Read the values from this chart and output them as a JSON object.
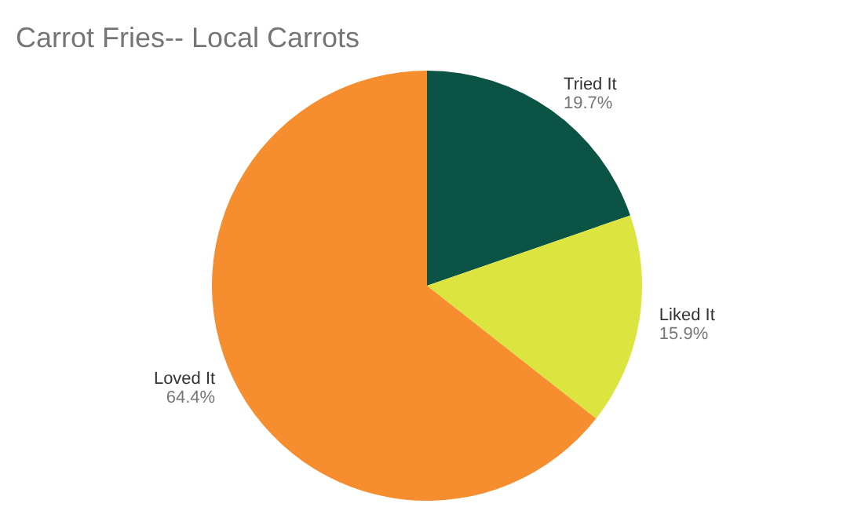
{
  "chart_data": {
    "type": "pie",
    "title": "Carrot Fries-- Local Carrots",
    "categories": [
      "Tried It",
      "Liked It",
      "Loved It"
    ],
    "values": [
      19.7,
      15.9,
      64.4
    ],
    "colors": [
      "#0b5345",
      "#dce43f",
      "#f68d2e"
    ],
    "value_labels": [
      "19.7%",
      "15.9%",
      "64.4%"
    ]
  }
}
